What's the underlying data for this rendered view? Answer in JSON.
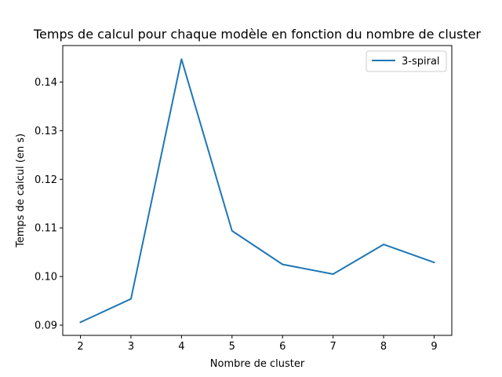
{
  "chart_data": {
    "type": "line",
    "title": "Temps de calcul pour chaque modèle en fonction du nombre de cluster",
    "xlabel": "Nombre de cluster",
    "ylabel": "Temps de calcul (en s)",
    "x": [
      2,
      3,
      4,
      5,
      6,
      7,
      8,
      9
    ],
    "series": [
      {
        "name": "3-spiral",
        "color": "#1f77b4",
        "values": [
          0.0906,
          0.0954,
          0.1447,
          0.1094,
          0.1025,
          0.1005,
          0.1066,
          0.1029
        ]
      }
    ],
    "xlim": [
      1.65,
      9.35
    ],
    "ylim": [
      0.0879,
      0.1475
    ],
    "xticks": [
      2,
      3,
      4,
      5,
      6,
      7,
      8,
      9
    ],
    "xtick_labels": [
      "2",
      "3",
      "4",
      "5",
      "6",
      "7",
      "8",
      "9"
    ],
    "yticks": [
      0.09,
      0.1,
      0.11,
      0.12,
      0.13,
      0.14
    ],
    "ytick_labels": [
      "0.09",
      "0.10",
      "0.11",
      "0.12",
      "0.13",
      "0.14"
    ],
    "grid": false,
    "legend_position": "top-right"
  }
}
